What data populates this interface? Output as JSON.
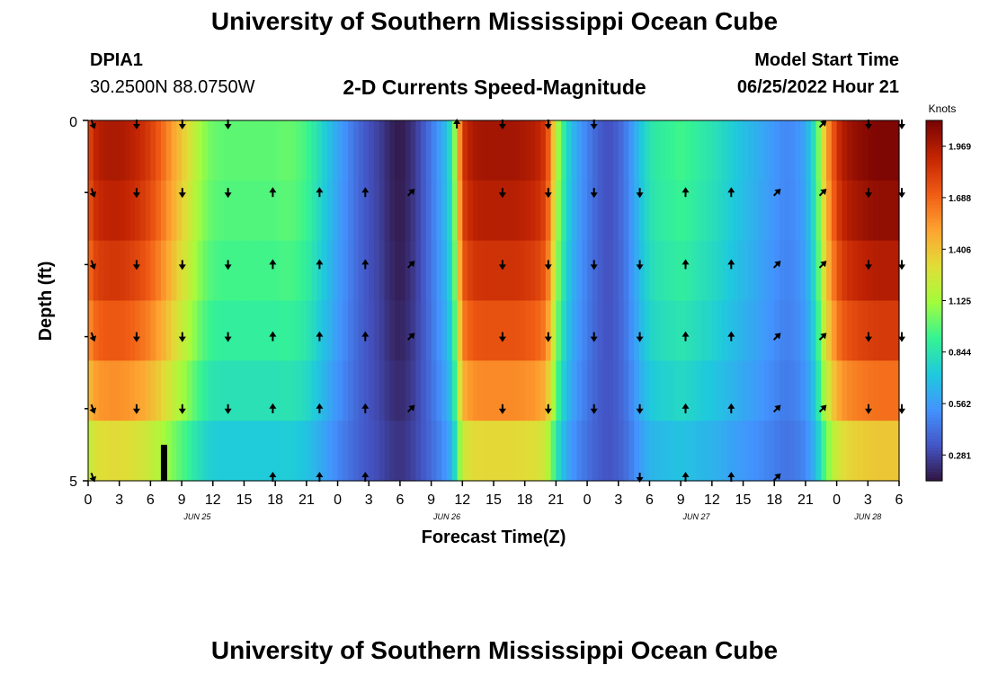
{
  "header": {
    "title": "University of Southern Mississippi Ocean Cube",
    "station_id": "DPIA1",
    "coordinates": "30.2500N  88.0750W",
    "model_start_label": "Model Start Time",
    "model_start_value": "06/25/2022 Hour 21"
  },
  "footer": {
    "title": "University of Southern Mississippi Ocean Cube"
  },
  "colors": {
    "colormap": [
      "#30123b",
      "#4454c4",
      "#4393fe",
      "#1fc9dd",
      "#35f393",
      "#a3fc3c",
      "#e1dd37",
      "#fea331",
      "#f05c14",
      "#c42503",
      "#7a0403"
    ],
    "arrow": "#000000"
  },
  "chart_data": {
    "type": "heatmap",
    "title": "2-D Currents Speed-Magnitude",
    "xlabel": "Forecast Time(Z)",
    "ylabel": "Depth (ft)",
    "colorbar_label": "Knots",
    "colorbar_ticks": [
      "0.281",
      "0.562",
      "0.844",
      "1.125",
      "1.406",
      "1.688",
      "1.969"
    ],
    "colorbar_range": [
      0.14,
      2.11
    ],
    "ylim": [
      0,
      5
    ],
    "y_tick_labels": [
      "0",
      "5"
    ],
    "y_minor_ticks": [
      1,
      2,
      3,
      4
    ],
    "x_range_hours": [
      0,
      78
    ],
    "x_tick_labels": [
      "0",
      "3",
      "6",
      "9",
      "12",
      "15",
      "18",
      "21",
      "0",
      "3",
      "6",
      "9",
      "12",
      "15",
      "18",
      "21",
      "0",
      "3",
      "6",
      "9",
      "12",
      "15",
      "18",
      "21",
      "0",
      "3",
      "6"
    ],
    "date_labels": [
      {
        "label": "JUN 25",
        "hour": 10.5
      },
      {
        "label": "JUN 26",
        "hour": 34.5
      },
      {
        "label": "JUN 27",
        "hour": 58.5
      },
      {
        "label": "JUN 28",
        "hour": 75
      }
    ],
    "speed_profile": {
      "hours": [
        0,
        0.5,
        1,
        2,
        3,
        4,
        5,
        6,
        7,
        8,
        9,
        10,
        11,
        12,
        13,
        14,
        15,
        16,
        17,
        18,
        19,
        20,
        21,
        22,
        23,
        24,
        25,
        26,
        27,
        28,
        29,
        30,
        31,
        32,
        33,
        34,
        35,
        35.5,
        36,
        37,
        38,
        39,
        40,
        41,
        42,
        43,
        44,
        44.5,
        45,
        46,
        47,
        48,
        49,
        50,
        51,
        52,
        53,
        54,
        55,
        56,
        57,
        58,
        59,
        60,
        61,
        62,
        63,
        64,
        65,
        66,
        67,
        68,
        69,
        70,
        71,
        72,
        72.5,
        73,
        74,
        75,
        76,
        77,
        78
      ],
      "surface": [
        1.75,
        1.9,
        1.95,
        1.98,
        1.98,
        1.95,
        1.9,
        1.82,
        1.7,
        1.55,
        1.4,
        1.25,
        1.1,
        1.02,
        1.0,
        1.0,
        1.0,
        1.0,
        1.0,
        1.0,
        1.02,
        1.0,
        0.95,
        0.85,
        0.72,
        0.6,
        0.5,
        0.4,
        0.33,
        0.28,
        0.2,
        0.16,
        0.22,
        0.32,
        0.45,
        0.6,
        0.85,
        1.3,
        1.85,
        1.98,
        2.0,
        2.0,
        2.0,
        2.0,
        1.98,
        1.95,
        1.85,
        1.6,
        1.2,
        0.8,
        0.6,
        0.48,
        0.38,
        0.32,
        0.38,
        0.5,
        0.7,
        0.85,
        0.9,
        0.92,
        0.95,
        0.92,
        0.88,
        0.85,
        0.8,
        0.75,
        0.7,
        0.65,
        0.6,
        0.55,
        0.5,
        0.52,
        0.6,
        0.9,
        1.5,
        1.85,
        1.95,
        2.0,
        2.05,
        2.08,
        2.1,
        2.1,
        2.1
      ]
    },
    "depth_factors": [
      1.0,
      0.97,
      0.92,
      0.85,
      0.75,
      0.6
    ],
    "bottom_dark_bar": {
      "hour_start": 7.0,
      "hour_end": 7.6,
      "depth_start": 4.5,
      "depth_end": 5.0
    },
    "arrow_columns_hours": [
      0.2,
      4.4,
      8.8,
      13.2,
      17.5,
      22,
      26.4,
      30.8,
      35.2,
      39.6,
      44,
      48.4,
      52.8,
      57.2,
      61.6,
      66,
      70.4,
      74.8,
      78
    ],
    "arrow_rows_depth": [
      0.05,
      1,
      2,
      3,
      4,
      4.95
    ],
    "arrow_direction_by_column": [
      "ssw",
      "s",
      "s",
      "s",
      "n",
      "n",
      "n",
      "ne",
      "n",
      "s",
      "s",
      "s",
      "s",
      "n",
      "n",
      "ne",
      "ne",
      "s",
      "s"
    ],
    "arrow_rows_present": [
      [
        1,
        1,
        1,
        1,
        1,
        1
      ],
      [
        1,
        1,
        1,
        1,
        1,
        0
      ],
      [
        1,
        1,
        1,
        1,
        1,
        0
      ],
      [
        1,
        1,
        1,
        1,
        1,
        0
      ],
      [
        0,
        1,
        1,
        1,
        1,
        1
      ],
      [
        0,
        1,
        1,
        1,
        1,
        1
      ],
      [
        0,
        1,
        1,
        1,
        1,
        1
      ],
      [
        0,
        1,
        1,
        1,
        1,
        0
      ],
      [
        1,
        0,
        0,
        0,
        0,
        0
      ],
      [
        1,
        1,
        1,
        1,
        1,
        0
      ],
      [
        1,
        1,
        1,
        1,
        1,
        0
      ],
      [
        1,
        1,
        1,
        1,
        1,
        0
      ],
      [
        0,
        1,
        1,
        1,
        1,
        1
      ],
      [
        0,
        1,
        1,
        1,
        1,
        1
      ],
      [
        0,
        1,
        1,
        1,
        1,
        1
      ],
      [
        0,
        1,
        1,
        1,
        1,
        1
      ],
      [
        1,
        1,
        1,
        1,
        1,
        0
      ],
      [
        1,
        1,
        1,
        1,
        1,
        0
      ],
      [
        1,
        1,
        1,
        1,
        1,
        0
      ]
    ]
  }
}
